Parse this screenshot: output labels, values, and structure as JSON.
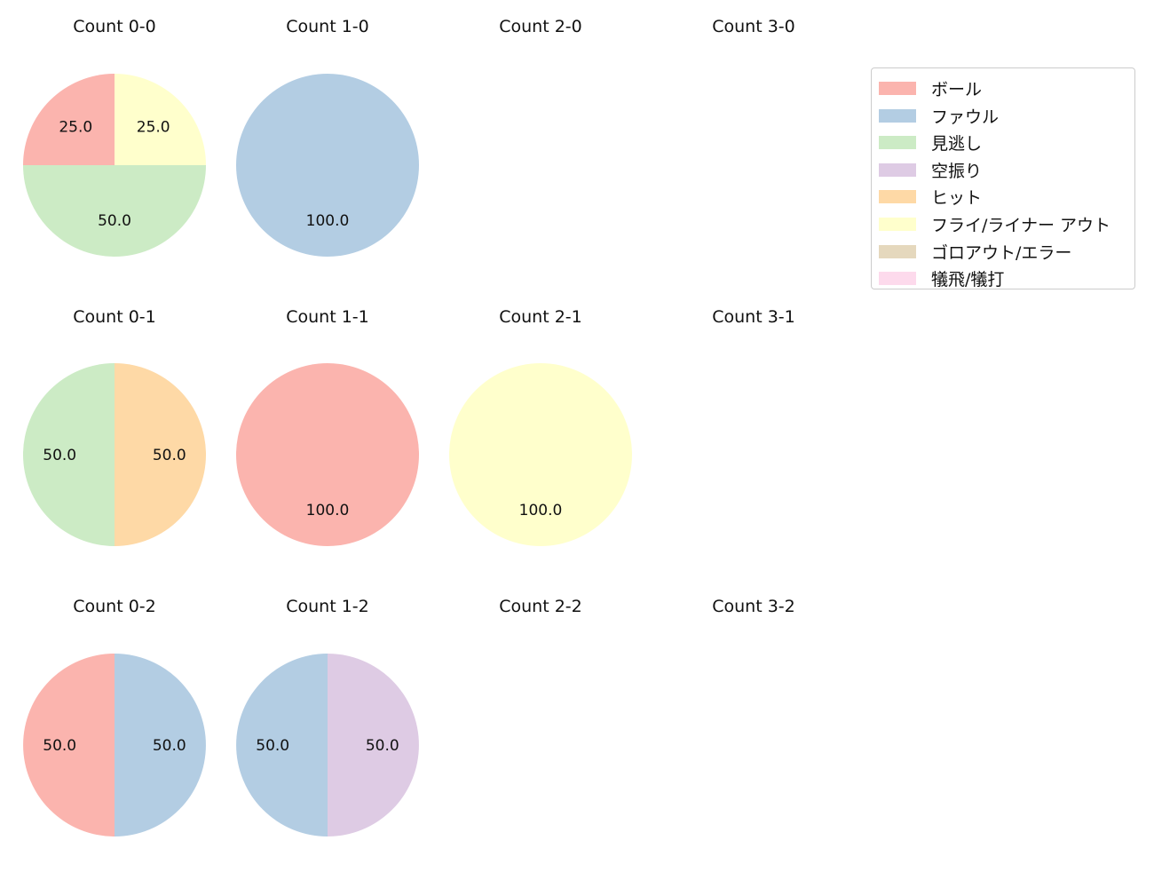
{
  "legend": [
    {
      "label": "ボール",
      "color": "#fbb4ae"
    },
    {
      "label": "ファウル",
      "color": "#b3cde3"
    },
    {
      "label": "見逃し",
      "color": "#ccebc5"
    },
    {
      "label": "空振り",
      "color": "#decbe4"
    },
    {
      "label": "ヒット",
      "color": "#fed9a6"
    },
    {
      "label": "フライ/ライナー アウト",
      "color": "#ffffcc"
    },
    {
      "label": "ゴロアウト/エラー",
      "color": "#e5d8bd"
    },
    {
      "label": "犠飛/犠打",
      "color": "#fddaec"
    }
  ],
  "chart_data": [
    {
      "type": "pie",
      "title": "Count 0-0",
      "slices": [
        {
          "category": "ボール",
          "value": 25.0
        },
        {
          "category": "見逃し",
          "value": 50.0
        },
        {
          "category": "フライ/ライナー アウト",
          "value": 25.0
        }
      ]
    },
    {
      "type": "pie",
      "title": "Count 1-0",
      "slices": [
        {
          "category": "ファウル",
          "value": 100.0
        }
      ]
    },
    {
      "type": "pie",
      "title": "Count 2-0",
      "slices": []
    },
    {
      "type": "pie",
      "title": "Count 3-0",
      "slices": []
    },
    {
      "type": "pie",
      "title": "Count 0-1",
      "slices": [
        {
          "category": "見逃し",
          "value": 50.0
        },
        {
          "category": "ヒット",
          "value": 50.0
        }
      ]
    },
    {
      "type": "pie",
      "title": "Count 1-1",
      "slices": [
        {
          "category": "ボール",
          "value": 100.0
        }
      ]
    },
    {
      "type": "pie",
      "title": "Count 2-1",
      "slices": [
        {
          "category": "フライ/ライナー アウト",
          "value": 100.0
        }
      ]
    },
    {
      "type": "pie",
      "title": "Count 3-1",
      "slices": []
    },
    {
      "type": "pie",
      "title": "Count 0-2",
      "slices": [
        {
          "category": "ボール",
          "value": 50.0
        },
        {
          "category": "ファウル",
          "value": 50.0
        }
      ]
    },
    {
      "type": "pie",
      "title": "Count 1-2",
      "slices": [
        {
          "category": "ファウル",
          "value": 50.0
        },
        {
          "category": "空振り",
          "value": 50.0
        }
      ]
    },
    {
      "type": "pie",
      "title": "Count 2-2",
      "slices": []
    },
    {
      "type": "pie",
      "title": "Count 3-2",
      "slices": []
    }
  ]
}
